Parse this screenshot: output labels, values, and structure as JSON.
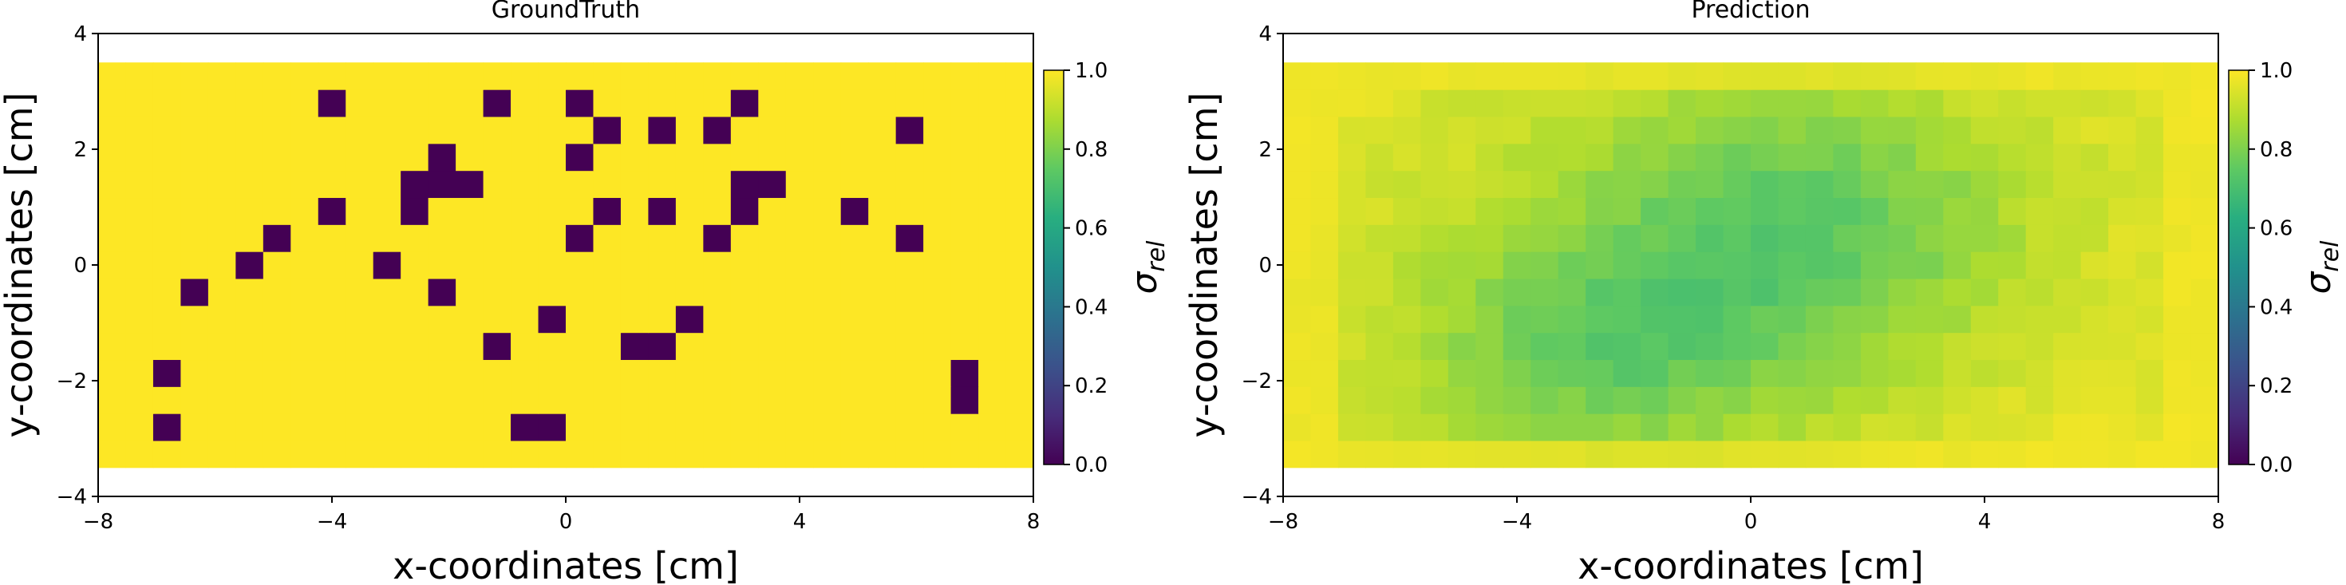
{
  "chart_data": [
    {
      "type": "heatmap",
      "title": "GroundTruth",
      "xlabel": "x-coordinates [cm]",
      "ylabel": "y-coordinates [cm]",
      "xlim": [
        -8,
        8
      ],
      "ylim": [
        -4,
        4
      ],
      "x_ticks": [
        "−8",
        "−4",
        "0",
        "4",
        "8"
      ],
      "y_ticks": [
        "−4",
        "−2",
        "0",
        "2",
        "4"
      ],
      "grid": false,
      "colormap": "viridis",
      "colorbar": {
        "label": "σ_rel",
        "label_main": "σ",
        "label_sub": "rel",
        "range": [
          0,
          1
        ],
        "ticks": [
          "0.0",
          "0.2",
          "0.4",
          "0.6",
          "0.8",
          "1.0"
        ]
      },
      "grid_extent": {
        "x": [
          -8,
          8
        ],
        "y": [
          -3.5,
          3.5
        ]
      },
      "nx": 34,
      "ny": 15,
      "background_value": 1.0,
      "low_value": 0.0,
      "low_cells_xy": [
        [
          -4.2,
          2.8
        ],
        [
          -3.8,
          2.8
        ],
        [
          -1.2,
          2.8
        ],
        [
          0.2,
          2.8
        ],
        [
          3.0,
          2.8
        ],
        [
          0.6,
          2.35
        ],
        [
          1.6,
          2.35
        ],
        [
          2.6,
          2.35
        ],
        [
          5.8,
          2.35
        ],
        [
          -2.2,
          1.9
        ],
        [
          0.2,
          1.9
        ],
        [
          -2.6,
          1.4
        ],
        [
          -2.2,
          1.4
        ],
        [
          -1.8,
          1.4
        ],
        [
          3.0,
          1.4
        ],
        [
          3.4,
          1.4
        ],
        [
          -4.0,
          0.95
        ],
        [
          -2.6,
          0.95
        ],
        [
          0.6,
          0.95
        ],
        [
          1.6,
          0.95
        ],
        [
          3.0,
          0.95
        ],
        [
          4.8,
          0.95
        ],
        [
          -5.0,
          0.5
        ],
        [
          0.2,
          0.5
        ],
        [
          2.6,
          0.5
        ],
        [
          5.8,
          0.5
        ],
        [
          -5.6,
          0.0
        ],
        [
          -3.0,
          0.0
        ],
        [
          -6.4,
          -0.45
        ],
        [
          -2.2,
          -0.45
        ],
        [
          -0.2,
          -0.9
        ],
        [
          2.0,
          -0.9
        ],
        [
          -1.2,
          -1.4
        ],
        [
          1.2,
          -1.4
        ],
        [
          1.6,
          -1.4
        ],
        [
          -6.8,
          -1.85
        ],
        [
          6.8,
          -1.85
        ],
        [
          6.8,
          -2.3
        ],
        [
          -6.8,
          -2.75
        ],
        [
          -0.8,
          -2.75
        ],
        [
          -0.4,
          -2.75
        ]
      ]
    },
    {
      "type": "heatmap",
      "title": "Prediction",
      "xlabel": "x-coordinates [cm]",
      "ylabel": "y-coordinates [cm]",
      "xlim": [
        -8,
        8
      ],
      "ylim": [
        -4,
        4
      ],
      "x_ticks": [
        "−8",
        "−4",
        "0",
        "4",
        "8"
      ],
      "y_ticks": [
        "−4",
        "−2",
        "0",
        "2",
        "4"
      ],
      "grid": false,
      "colormap": "viridis",
      "colorbar": {
        "label": "σ_rel",
        "label_main": "σ",
        "label_sub": "rel",
        "range": [
          0,
          1
        ],
        "ticks": [
          "0.0",
          "0.2",
          "0.4",
          "0.6",
          "0.8",
          "1.0"
        ]
      },
      "grid_extent": {
        "x": [
          -8,
          8
        ],
        "y": [
          -3.5,
          3.5
        ]
      },
      "nx": 34,
      "ny": 15,
      "value_range_approx": [
        0.68,
        0.99
      ],
      "lowest_region_xy": [
        [
          1.6,
          0.4
        ],
        [
          -3.0,
          -2.4
        ]
      ]
    }
  ]
}
